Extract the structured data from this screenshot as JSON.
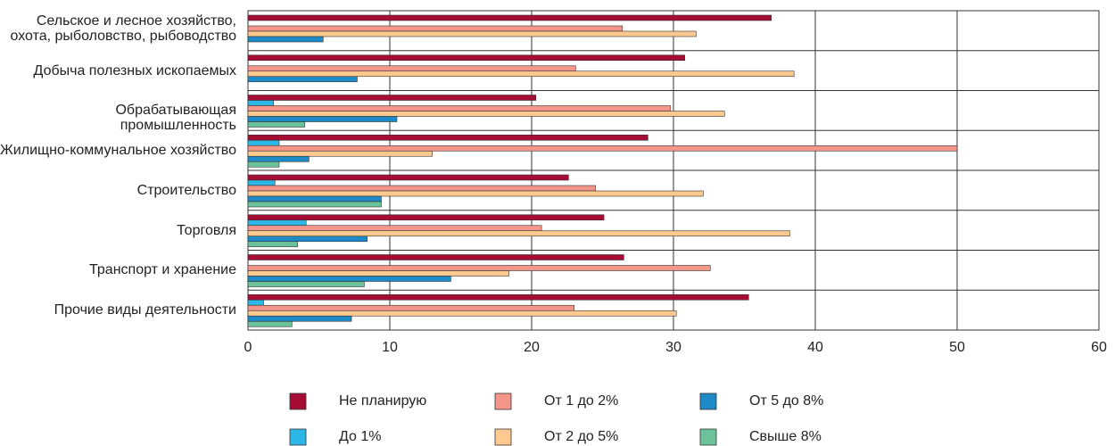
{
  "chart_data": {
    "type": "bar",
    "orientation": "horizontal",
    "categories": [
      "Сельское и лесное хозяйство,\nохота, рыболовство, рыбоводство",
      "Добыча полезных ископаемых",
      "Обрабатывающая промышленность",
      "Жилищно-коммунальное хозяйство",
      "Строительство",
      "Торговля",
      "Транспорт и хранение",
      "Прочие виды деятельности"
    ],
    "series": [
      {
        "name": "Не планирую",
        "color": "#a50d35",
        "values": [
          36.9,
          30.8,
          20.3,
          28.2,
          22.6,
          25.1,
          26.5,
          35.3
        ]
      },
      {
        "name": "До 1%",
        "color": "#2db7e6",
        "values": [
          0,
          0,
          1.8,
          2.2,
          1.9,
          4.1,
          0,
          1.1
        ]
      },
      {
        "name": "От 1 до 2%",
        "color": "#f4978a",
        "values": [
          26.4,
          23.1,
          29.8,
          50,
          24.5,
          20.7,
          32.6,
          23.0
        ]
      },
      {
        "name": "От 2 до 5%",
        "color": "#fdc98f",
        "values": [
          31.6,
          38.5,
          33.6,
          13,
          32.1,
          38.2,
          18.4,
          30.2
        ]
      },
      {
        "name": "От 5 до 8%",
        "color": "#1f8ac8",
        "values": [
          5.3,
          7.7,
          10.5,
          4.3,
          9.4,
          8.4,
          14.3,
          7.3
        ]
      },
      {
        "name": "Свыше 8%",
        "color": "#6cc39b",
        "values": [
          0,
          0,
          4.0,
          2.2,
          9.4,
          3.5,
          8.2,
          3.1
        ]
      }
    ],
    "xlim": [
      0,
      60
    ],
    "xticks": [
      0,
      10,
      20,
      30,
      40,
      50,
      60
    ],
    "grid": true,
    "legend": "bottom"
  }
}
